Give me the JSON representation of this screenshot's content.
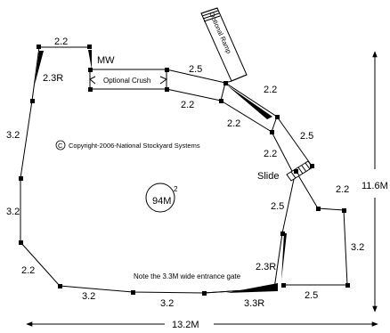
{
  "copyright": "Copyright-2006-National Stockyard Systems",
  "copyright_symbol": "C",
  "labels": {
    "top_edge": "2.2",
    "left_upper_radius": "2.3R",
    "mw": "MW",
    "optional_crush": "Optional Crush",
    "optional_ramp": "Optional Ramp",
    "ramp_upper_2_5": "2.5",
    "ramp_right_2_2": "2.2",
    "crush_lower_2_2": "2.2",
    "inner_2_2": "2.2",
    "right_2_5": "2.5",
    "right_2_2_upper": "2.2",
    "slide": "Slide",
    "right_2_2_lower": "2.2",
    "inner_right_2_5": "2.5",
    "right_3_2": "3.2",
    "lower_radius": "2.3R",
    "bottom_right_2_5": "2.5",
    "left_3_2_upper": "3.2",
    "left_3_2_lower": "3.2",
    "left_2_2": "2.2",
    "bottom_3_2_left": "3.2",
    "bottom_3_2_mid": "3.2",
    "bottom_radius": "3.3R",
    "gate_note": "Note the 3.3M wide entrance gate",
    "area_value": "94M",
    "area_exp": "2",
    "width_total": "13.2M",
    "height_total": "11.6M"
  }
}
